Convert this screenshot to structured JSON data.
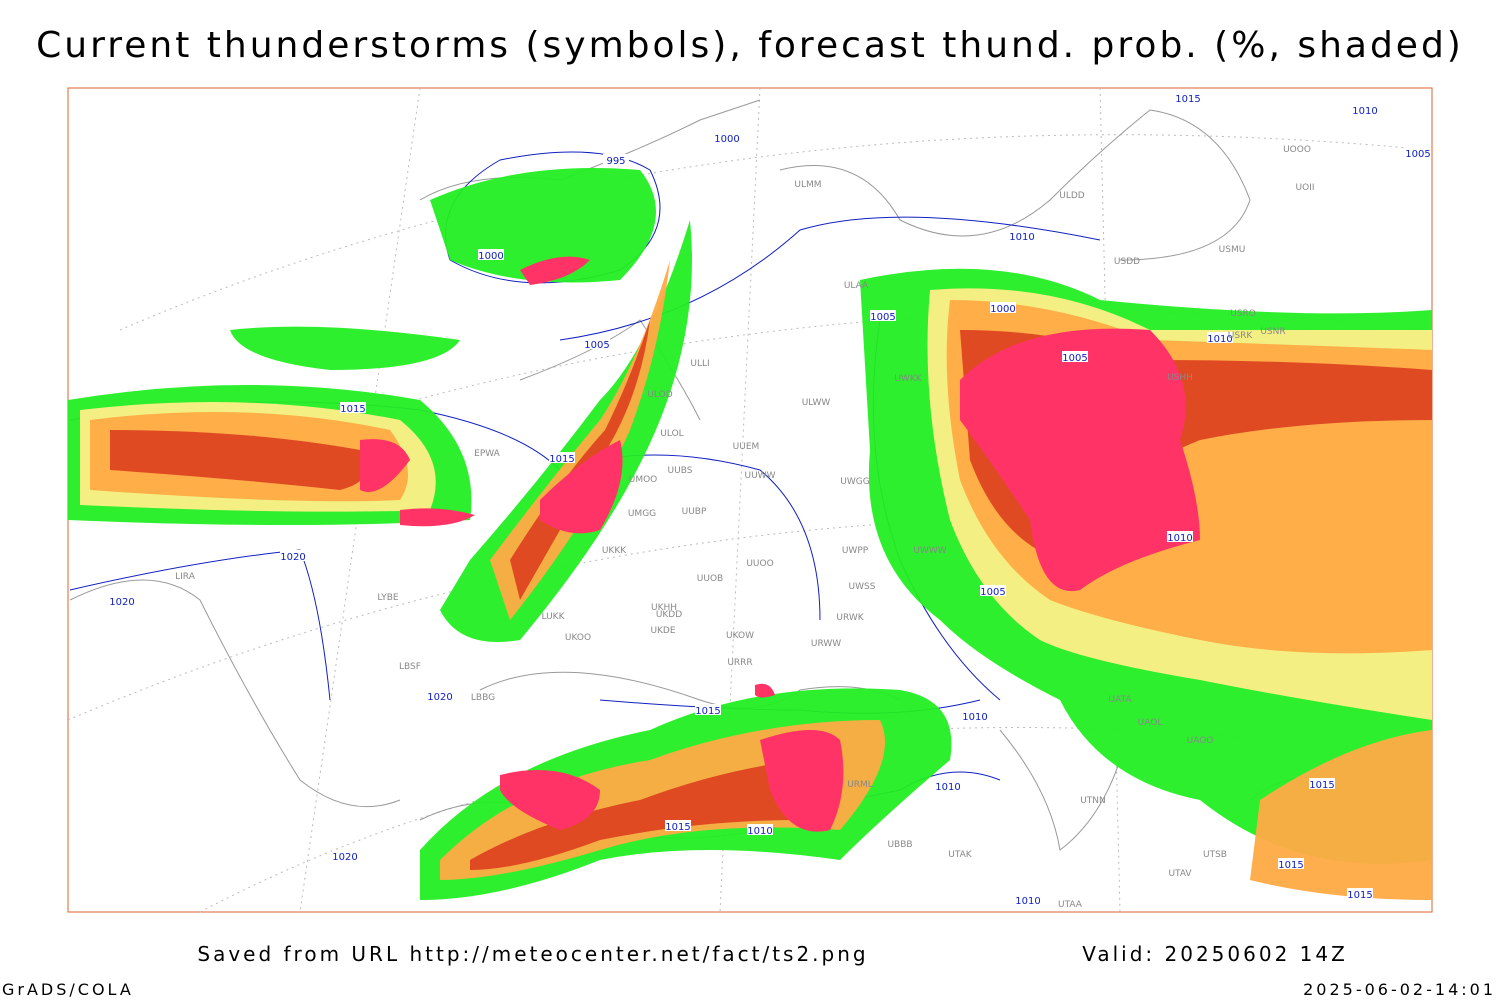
{
  "header": {
    "title": "Current thunderstorms (symbols), forecast thund. prob. (%, shaded)"
  },
  "footer": {
    "source": "Saved from URL http://meteocenter.net/fact/ts2.png",
    "valid": "Valid: 20250602 14Z",
    "credit": "GrADS/COLA",
    "timestamp": "2025-06-02-14:01"
  },
  "isobar_labels": [
    "995",
    "1000",
    "1000",
    "1005",
    "1015",
    "1015",
    "1010",
    "1010",
    "1005",
    "1000",
    "1005",
    "1005",
    "1010",
    "1015",
    "1020",
    "1020",
    "1020",
    "1020",
    "1015",
    "1010",
    "1010",
    "1015",
    "1010",
    "1010",
    "1010",
    "1005",
    "1015",
    "1015",
    "1015"
  ],
  "stations": [
    "ULMM",
    "ULDD",
    "USDD",
    "USMU",
    "UOOO",
    "UOII",
    "ULAA",
    "USRO",
    "USRK",
    "USNR",
    "USHH",
    "ULLI",
    "ULOD",
    "ULOL",
    "UUEM",
    "UUBS",
    "UUWW",
    "UMOO",
    "UMGG",
    "UUBP",
    "UKKK",
    "UUOO",
    "UUOB",
    "UKHH",
    "LUKK",
    "UKDD",
    "UKDE",
    "UKOO",
    "UKOW",
    "URWW",
    "URRR",
    "UWPP",
    "UWSS",
    "URWK",
    "UWWW",
    "UWGG",
    "UWKK",
    "ULWW",
    "UATA",
    "UAOL",
    "UAOO",
    "UTNN",
    "UTAK",
    "UBBB",
    "UTAA",
    "UTAV",
    "UTSB",
    "URML",
    "LIRA",
    "LYBE",
    "LBSF",
    "LBBG",
    "EPWA"
  ]
}
